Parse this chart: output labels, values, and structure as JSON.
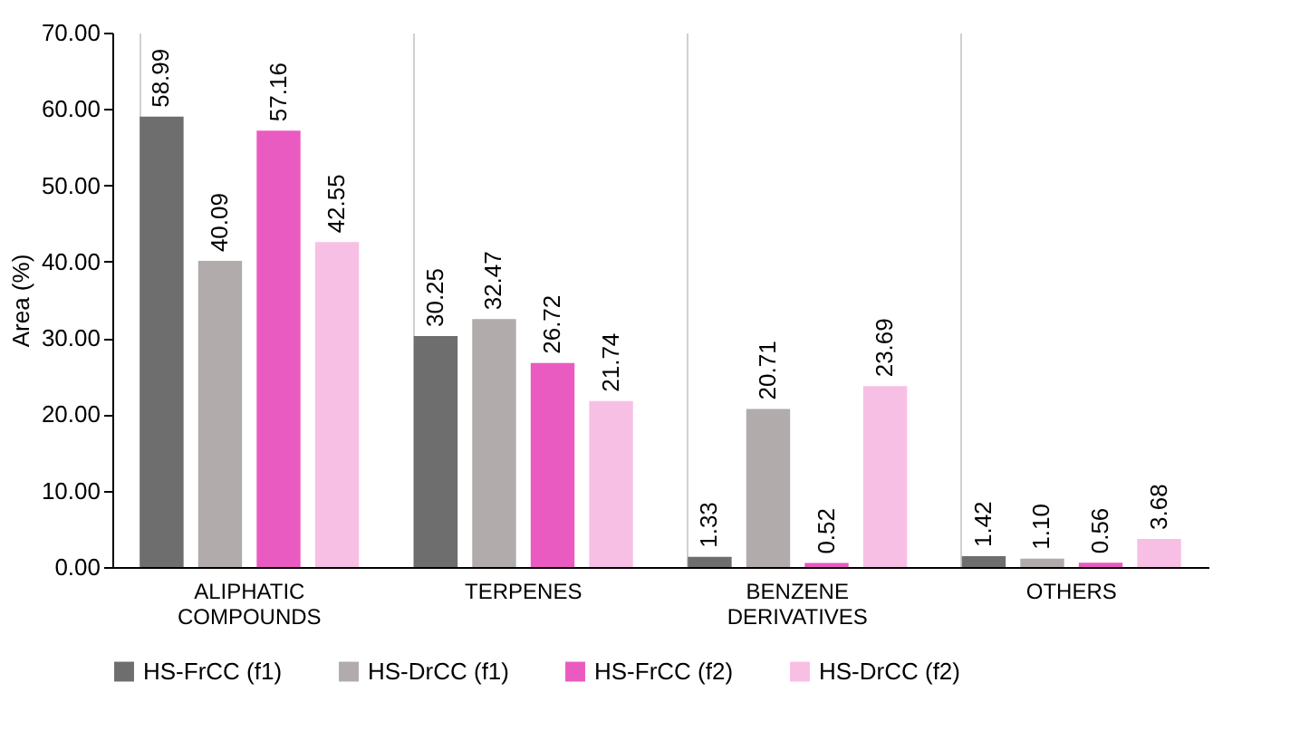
{
  "chart_data": {
    "type": "bar",
    "ylabel": "Area (%)",
    "categories": [
      "ALIPHATIC COMPOUNDS",
      "TERPENES",
      "BENZENE DERIVATIVES",
      "OTHERS"
    ],
    "series": [
      {
        "name": "HS-FrCC (f1)",
        "color": "#6e6e6e",
        "values": [
          58.99,
          30.25,
          1.33,
          1.42
        ],
        "value_labels": [
          "58.99",
          "30.25",
          "1.33",
          "1.42"
        ]
      },
      {
        "name": "HS-DrCC (f1)",
        "color": "#b1abab",
        "values": [
          40.09,
          32.47,
          20.71,
          1.1
        ],
        "value_labels": [
          "40.09",
          "32.47",
          "20.71",
          "1.10"
        ]
      },
      {
        "name": "HS-FrCC (f2)",
        "color": "#ea5bc1",
        "values": [
          57.16,
          26.72,
          0.52,
          0.56
        ],
        "value_labels": [
          "57.16",
          "26.72",
          "0.52",
          "0.56"
        ]
      },
      {
        "name": "HS-DrCC (f2)",
        "color": "#f8bfe4",
        "values": [
          42.55,
          21.74,
          23.69,
          3.68
        ],
        "value_labels": [
          "42.55",
          "21.74",
          "23.69",
          "3.68"
        ]
      }
    ],
    "ylim": [
      0,
      70
    ],
    "yticks": [
      {
        "value": 0,
        "label": "0.00"
      },
      {
        "value": 10,
        "label": "10.00"
      },
      {
        "value": 20,
        "label": "20.00"
      },
      {
        "value": 30,
        "label": "30.00"
      },
      {
        "value": 40,
        "label": "40.00"
      },
      {
        "value": 50,
        "label": "50.00"
      },
      {
        "value": 60,
        "label": "60.00"
      },
      {
        "value": 70,
        "label": "70.00"
      }
    ],
    "grid": "x",
    "legend": "bottom"
  }
}
